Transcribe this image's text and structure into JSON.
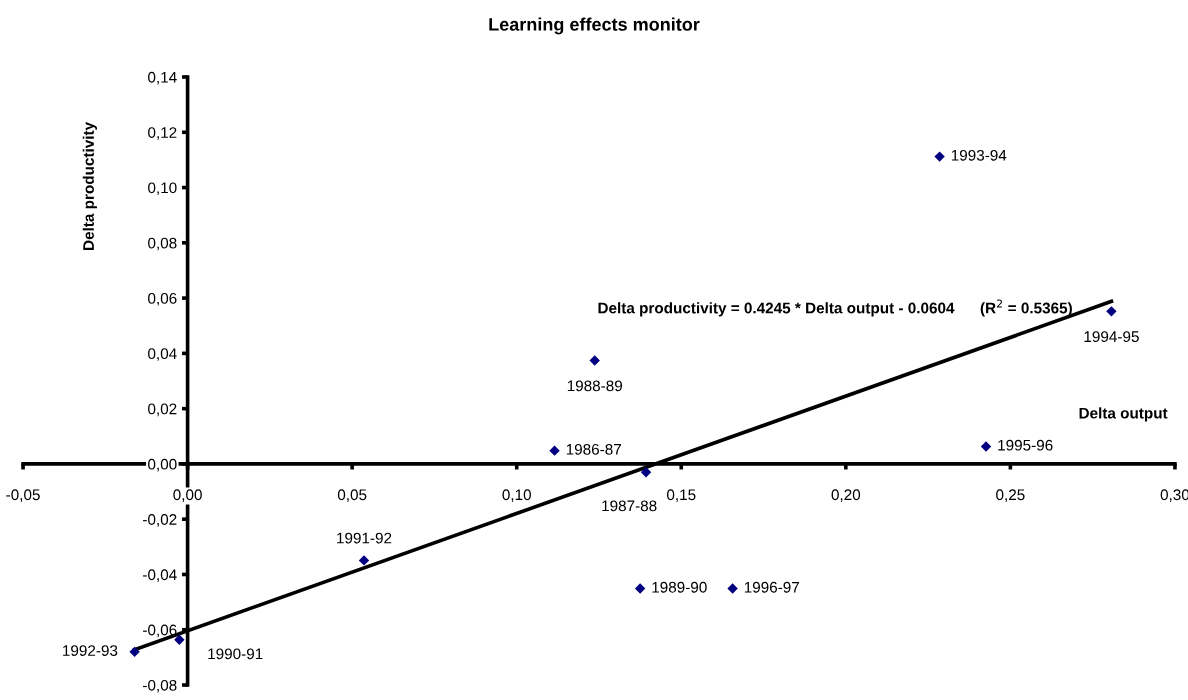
{
  "chart_data": {
    "type": "scatter",
    "title": "Learning effects monitor",
    "xlabel": "Delta output",
    "ylabel": "Delta productivity",
    "xlim": [
      -0.05,
      0.3
    ],
    "ylim": [
      -0.08,
      0.14
    ],
    "xticks": [
      {
        "value": -0.05,
        "label": "-0,05"
      },
      {
        "value": 0,
        "label": "0,00"
      },
      {
        "value": 0.05,
        "label": "0,05"
      },
      {
        "value": 0.1,
        "label": "0,10"
      },
      {
        "value": 0.15,
        "label": "0,15"
      },
      {
        "value": 0.2,
        "label": "0,20"
      },
      {
        "value": 0.25,
        "label": "0,25"
      },
      {
        "value": 0.3,
        "label": "0,30"
      }
    ],
    "yticks": [
      {
        "value": -0.08,
        "label": "-0,08"
      },
      {
        "value": -0.06,
        "label": "-0,06"
      },
      {
        "value": -0.04,
        "label": "-0,04"
      },
      {
        "value": -0.02,
        "label": "-0,02"
      },
      {
        "value": 0,
        "label": "0,00"
      },
      {
        "value": 0.02,
        "label": "0,02"
      },
      {
        "value": 0.04,
        "label": "0,04"
      },
      {
        "value": 0.06,
        "label": "0,06"
      },
      {
        "value": 0.08,
        "label": "0,08"
      },
      {
        "value": 0.1,
        "label": "0,10"
      },
      {
        "value": 0.12,
        "label": "0,12"
      },
      {
        "value": 0.14,
        "label": "0,14"
      }
    ],
    "grid": false,
    "legend": false,
    "series": [
      {
        "color": "#000080",
        "marker": "diamond",
        "x": [
          0.2285,
          0.2807,
          0.1237,
          0.1115,
          0.2426,
          0.1393,
          0.0536,
          0.1375,
          0.1656,
          -0.0161,
          -0.0025
        ],
        "values": [
          0.1112,
          0.0552,
          0.0374,
          0.0048,
          0.0063,
          -0.003,
          -0.0349,
          -0.0451,
          -0.0451,
          -0.068,
          -0.0636
        ]
      },
      {
        "type": "line",
        "color": "#000000",
        "marker": "none",
        "line_style": "solid",
        "x": [
          -0.0161,
          0.2807
        ],
        "values": [
          -0.0672,
          0.0588
        ]
      }
    ],
    "annotations": [
      "Delta productivity = 0.4245 * Delta output - 0.0604      (R$^{2}$ = 0.5365)",
      {
        "text": "1993-94",
        "x": 0.2285,
        "y": 0.1112
      },
      {
        "text": "1994-95",
        "x": 0.2807,
        "y": 0.0552
      },
      {
        "text": "1988-89",
        "x": 0.1237,
        "y": 0.0374
      },
      {
        "text": "1986-87",
        "x": 0.1115,
        "y": 0.0048
      },
      {
        "text": "1995-96",
        "x": 0.2426,
        "y": 0.0063
      },
      {
        "text": "1987-88",
        "x": 0.1393,
        "y": -0.003
      },
      {
        "text": "1991-92",
        "x": 0.0536,
        "y": -0.0349
      },
      {
        "text": "1989-90",
        "x": 0.1375,
        "y": -0.0451
      },
      {
        "text": "1996-97",
        "x": 0.1656,
        "y": -0.0451
      },
      {
        "text": "1992-93",
        "x": -0.0161,
        "y": -0.068
      },
      {
        "text": "1990-91",
        "x": -0.0025,
        "y": -0.0636
      }
    ]
  }
}
